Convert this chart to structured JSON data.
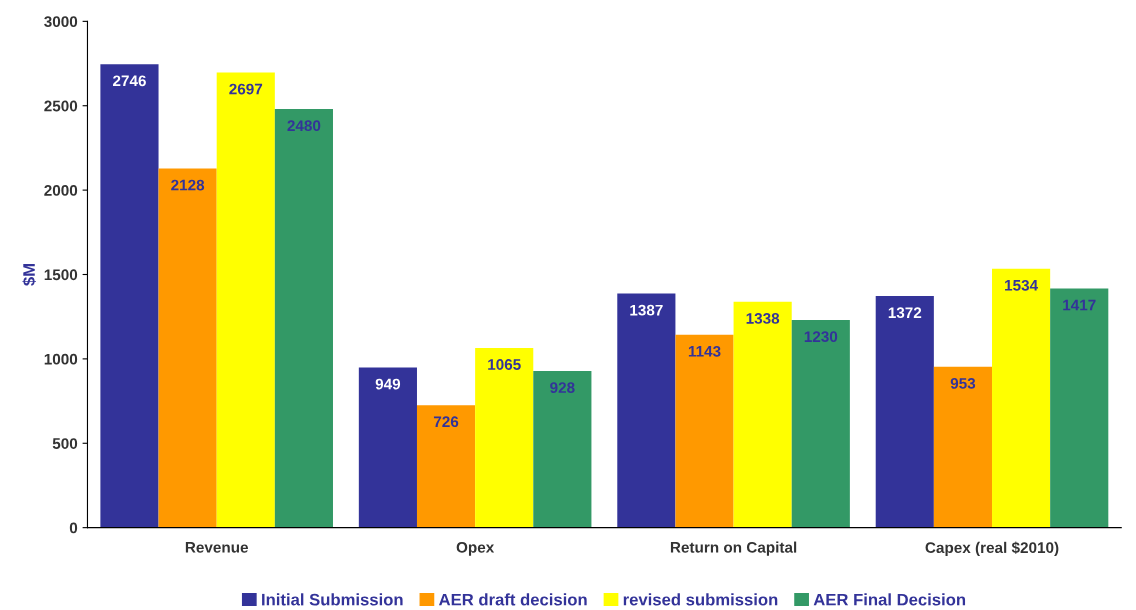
{
  "chart_data": {
    "type": "bar",
    "ylabel": "$M",
    "categories": [
      "Revenue",
      "Opex",
      "Return on Capital",
      "Capex (real $2010)"
    ],
    "series": [
      {
        "name": "Initial Submission",
        "color": "#333399",
        "values": [
          2746,
          949,
          1387,
          1372
        ]
      },
      {
        "name": "AER draft decision",
        "color": "#ff9900",
        "values": [
          2128,
          726,
          1143,
          953
        ]
      },
      {
        "name": "revised submission",
        "color": "#ffff00",
        "values": [
          2697,
          1065,
          1338,
          1534
        ]
      },
      {
        "name": "AER Final Decision",
        "color": "#339966",
        "values": [
          2480,
          928,
          1230,
          1417
        ]
      }
    ],
    "ylim": [
      0,
      3000
    ],
    "yticks": [
      0,
      500,
      1000,
      1500,
      2000,
      2500,
      3000
    ],
    "data_labels": true,
    "grid": false,
    "legend": "bottom"
  }
}
